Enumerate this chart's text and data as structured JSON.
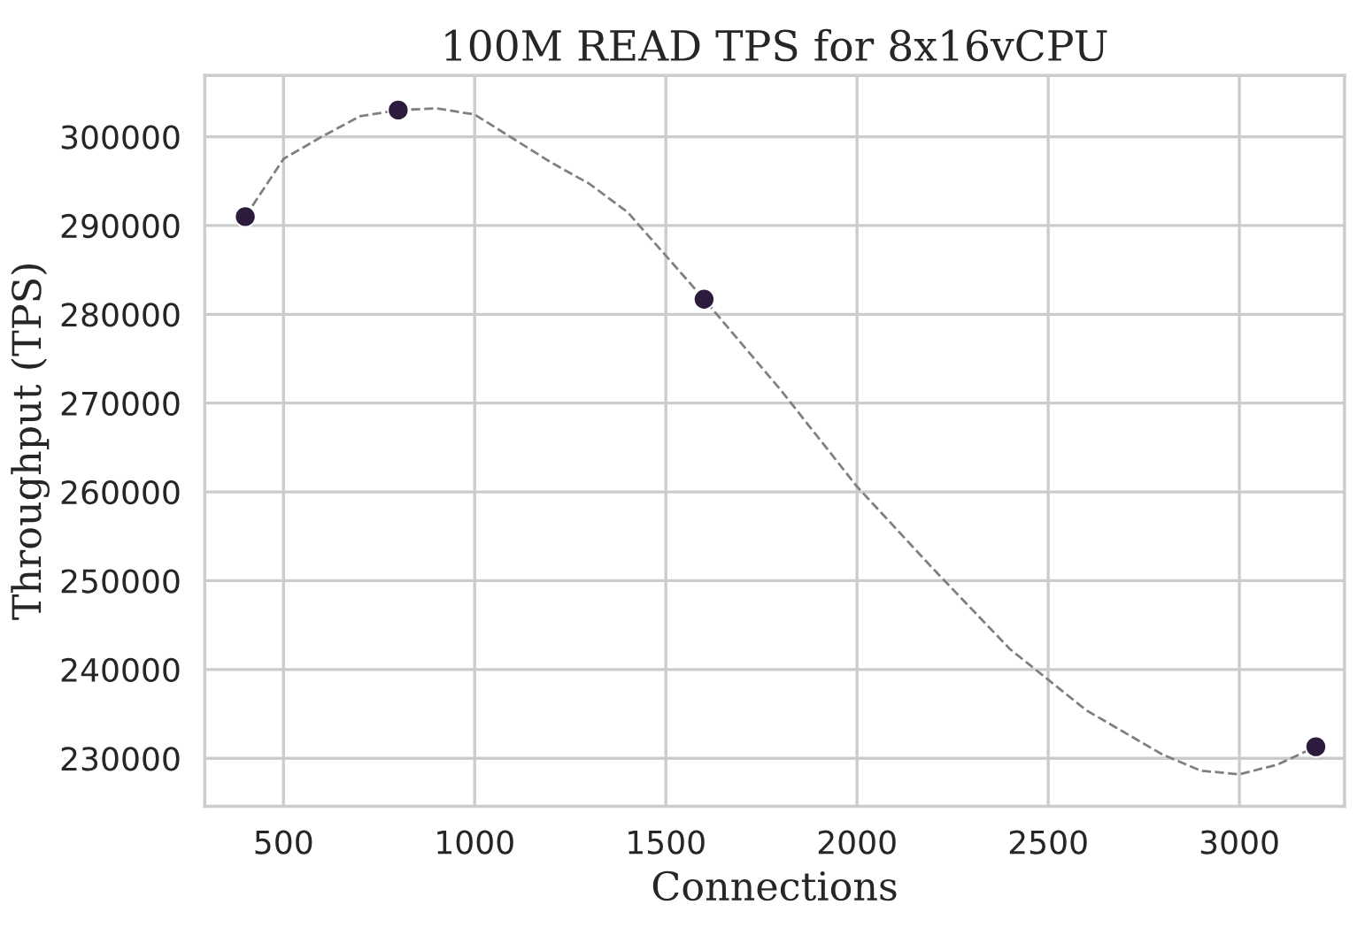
{
  "chart_data": {
    "type": "scatter",
    "title": "100M READ TPS for 8x16vCPU",
    "xlabel": "Connections",
    "ylabel": "Throughput (TPS)",
    "series": [
      {
        "color": "#2d1b3e",
        "marker": "circle",
        "x": [
          400,
          800,
          1600,
          3200
        ],
        "values": [
          291000,
          303000,
          281700,
          231300
        ]
      },
      {
        "type": "line",
        "color": "#808080",
        "line_style": "dashed",
        "marker": "none",
        "x": [
          400,
          500,
          600,
          700,
          800,
          900,
          1000,
          1200,
          1300,
          1400,
          1600,
          1800,
          2000,
          2200,
          2400,
          2600,
          2800,
          2900,
          3000,
          3100,
          3200
        ],
        "values": [
          291000,
          297500,
          300000,
          302300,
          303000,
          303200,
          302500,
          297100,
          294700,
          291500,
          281700,
          271500,
          260600,
          251300,
          242300,
          235400,
          230400,
          228600,
          228200,
          229300,
          231300
        ]
      }
    ],
    "xlim": [
      294,
      3275
    ],
    "ylim": [
      224600,
      306900
    ],
    "xticks": [
      500,
      1000,
      1500,
      2000,
      2500,
      3000
    ],
    "yticks": [
      230000,
      240000,
      250000,
      260000,
      270000,
      280000,
      290000,
      300000
    ],
    "grid": true,
    "legend": false
  }
}
